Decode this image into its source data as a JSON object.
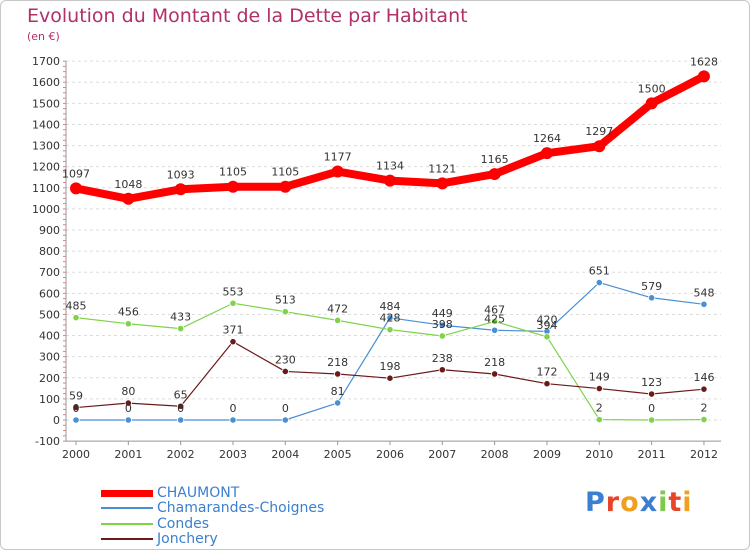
{
  "header": {
    "title": "Evolution du Montant de la Dette par Habitant",
    "subtitle": "(en €)"
  },
  "chart_data": {
    "type": "line",
    "title": "Evolution du Montant de la Dette par Habitant",
    "ylabel": "(en €)",
    "xlabel": "",
    "ylim": [
      -100,
      1700
    ],
    "y_ticks": [
      -100,
      0,
      100,
      200,
      300,
      400,
      500,
      600,
      700,
      800,
      900,
      1000,
      1100,
      1200,
      1300,
      1400,
      1500,
      1600,
      1700
    ],
    "x": [
      "2000",
      "2001",
      "2002",
      "2003",
      "2004",
      "2005",
      "2006",
      "2007",
      "2008",
      "2009",
      "2010",
      "2011",
      "2012"
    ],
    "grid": "horizontal dashed",
    "legend_position": "bottom-left",
    "series": [
      {
        "name": "CHAUMONT",
        "color": "#ff0000",
        "values": [
          1097,
          1048,
          1093,
          1105,
          1105,
          1177,
          1134,
          1121,
          1165,
          1264,
          1297,
          1500,
          1628
        ]
      },
      {
        "name": "Chamarandes-Choignes",
        "color": "#4a8fd4",
        "values": [
          0,
          0,
          0,
          0,
          0,
          81,
          484,
          449,
          425,
          420,
          651,
          579,
          548
        ]
      },
      {
        "name": "Condes",
        "color": "#7ed34a",
        "values": [
          485,
          456,
          433,
          553,
          513,
          472,
          428,
          398,
          467,
          394,
          2,
          0,
          2
        ]
      },
      {
        "name": "Jonchery",
        "color": "#6b1a1a",
        "values": [
          59,
          80,
          65,
          371,
          230,
          218,
          198,
          238,
          218,
          172,
          149,
          123,
          146
        ]
      }
    ]
  },
  "logo": {
    "letters": [
      "P",
      "r",
      "o",
      "x",
      "i",
      "t",
      "i"
    ],
    "colors": [
      "#3b7fd0",
      "#e8442a",
      "#f0a020",
      "#3b7fd0",
      "#7ec84a",
      "#e8442a",
      "#f0a020"
    ]
  }
}
